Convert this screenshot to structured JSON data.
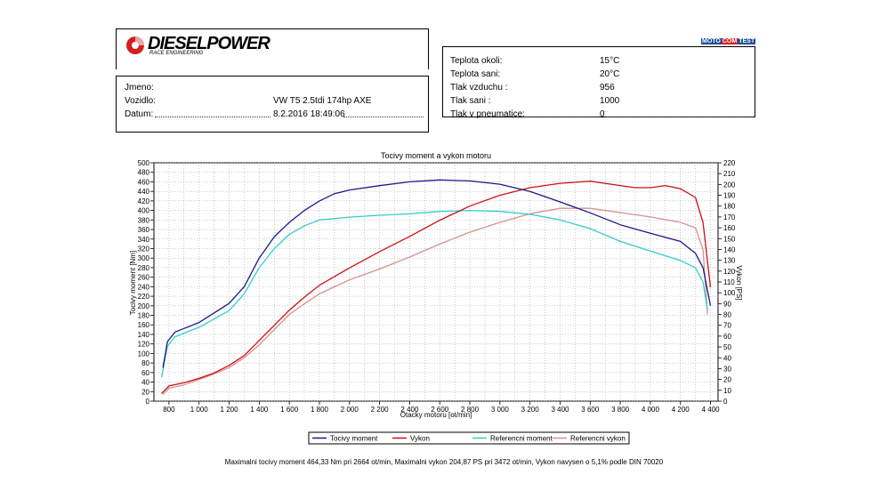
{
  "header": {
    "logo_text": "DIESELPOWER",
    "logo_sub": "RACE ENGINEERING",
    "brand_mark": {
      "part1": "MOTO",
      "part2": "COM",
      "part3": "TEST"
    }
  },
  "info": {
    "fields": [
      {
        "label": "Jmeno:",
        "value": ""
      },
      {
        "label": "Vozidlo:",
        "value": "VW T5 2.5tdi 174hp AXE"
      },
      {
        "label": "Datum:",
        "value": "8.2.2016 18:49:06"
      }
    ]
  },
  "conditions": {
    "fields": [
      {
        "label": "Teplota okoli:",
        "value": "15°C"
      },
      {
        "label": "Teplota sani:",
        "value": "20°C"
      },
      {
        "label": "Tlak vzduchu :",
        "value": "956"
      },
      {
        "label": "Tlak sani :",
        "value": "1000"
      },
      {
        "label": "Tlak v pneumatice:",
        "value": "0"
      }
    ]
  },
  "chart_data": {
    "type": "line",
    "title": "Tocivy moment a vykon motoru",
    "xlabel": "Otacky motoru [ot/min]",
    "ylabel_left": "Tocivy moment [Nm]",
    "ylabel_right": "Vykon [PS]",
    "xlim": [
      700,
      4450
    ],
    "ylim_left": [
      0,
      500
    ],
    "ylim_right": [
      0,
      220
    ],
    "x_ticks": [
      "800",
      "1 000",
      "1 200",
      "1 400",
      "1 600",
      "1 800",
      "2 000",
      "2 200",
      "2 400",
      "2 600",
      "2 800",
      "3 000",
      "3 200",
      "3 400",
      "3 600",
      "3 800",
      "4 000",
      "4 200",
      "4 400"
    ],
    "y_left_ticks": [
      "0",
      "20",
      "40",
      "60",
      "80",
      "100",
      "120",
      "140",
      "160",
      "180",
      "200",
      "220",
      "240",
      "260",
      "280",
      "300",
      "320",
      "340",
      "360",
      "380",
      "400",
      "420",
      "440",
      "460",
      "480",
      "500"
    ],
    "y_right_ticks": [
      "0",
      "10",
      "20",
      "30",
      "40",
      "50",
      "60",
      "70",
      "80",
      "90",
      "100",
      "110",
      "120",
      "130",
      "140",
      "150",
      "160",
      "170",
      "180",
      "190",
      "200",
      "210",
      "220"
    ],
    "grid": true,
    "legend_position": "bottom",
    "series": [
      {
        "name": "Tocivy moment",
        "axis": "left",
        "color": "#1a1a8c",
        "points": [
          [
            760,
            70
          ],
          [
            790,
            125
          ],
          [
            840,
            145
          ],
          [
            1000,
            165
          ],
          [
            1200,
            205
          ],
          [
            1300,
            240
          ],
          [
            1400,
            300
          ],
          [
            1500,
            345
          ],
          [
            1600,
            375
          ],
          [
            1700,
            400
          ],
          [
            1800,
            420
          ],
          [
            1900,
            435
          ],
          [
            2000,
            443
          ],
          [
            2200,
            452
          ],
          [
            2400,
            460
          ],
          [
            2600,
            464
          ],
          [
            2800,
            462
          ],
          [
            3000,
            455
          ],
          [
            3200,
            440
          ],
          [
            3400,
            418
          ],
          [
            3600,
            395
          ],
          [
            3800,
            370
          ],
          [
            4000,
            352
          ],
          [
            4200,
            335
          ],
          [
            4300,
            310
          ],
          [
            4350,
            280
          ],
          [
            4400,
            200
          ]
        ]
      },
      {
        "name": "Vykon",
        "axis": "right",
        "color": "#cc1111",
        "points": [
          [
            750,
            7
          ],
          [
            800,
            14
          ],
          [
            900,
            17
          ],
          [
            1000,
            21
          ],
          [
            1100,
            26
          ],
          [
            1200,
            33
          ],
          [
            1300,
            42
          ],
          [
            1400,
            56
          ],
          [
            1500,
            70
          ],
          [
            1600,
            84
          ],
          [
            1700,
            96
          ],
          [
            1800,
            107
          ],
          [
            1900,
            115
          ],
          [
            2000,
            123
          ],
          [
            2200,
            138
          ],
          [
            2400,
            152
          ],
          [
            2600,
            167
          ],
          [
            2800,
            180
          ],
          [
            3000,
            190
          ],
          [
            3200,
            197
          ],
          [
            3400,
            201
          ],
          [
            3500,
            202
          ],
          [
            3600,
            203
          ],
          [
            3800,
            199
          ],
          [
            3900,
            197
          ],
          [
            4000,
            197
          ],
          [
            4100,
            199
          ],
          [
            4200,
            196
          ],
          [
            4300,
            188
          ],
          [
            4350,
            165
          ],
          [
            4400,
            105
          ]
        ]
      },
      {
        "name": "Referencni moment",
        "axis": "left",
        "color": "#33cccc",
        "points": [
          [
            750,
            50
          ],
          [
            790,
            115
          ],
          [
            840,
            135
          ],
          [
            1000,
            155
          ],
          [
            1200,
            190
          ],
          [
            1300,
            225
          ],
          [
            1400,
            280
          ],
          [
            1500,
            320
          ],
          [
            1600,
            350
          ],
          [
            1700,
            368
          ],
          [
            1800,
            380
          ],
          [
            2000,
            386
          ],
          [
            2200,
            390
          ],
          [
            2400,
            393
          ],
          [
            2600,
            398
          ],
          [
            2800,
            400
          ],
          [
            3000,
            398
          ],
          [
            3200,
            392
          ],
          [
            3400,
            380
          ],
          [
            3600,
            362
          ],
          [
            3800,
            335
          ],
          [
            4000,
            315
          ],
          [
            4200,
            295
          ],
          [
            4300,
            280
          ],
          [
            4350,
            250
          ],
          [
            4380,
            190
          ]
        ]
      },
      {
        "name": "Referencni vykon",
        "axis": "right",
        "color": "#d99090",
        "points": [
          [
            760,
            6
          ],
          [
            800,
            12
          ],
          [
            900,
            15
          ],
          [
            1000,
            20
          ],
          [
            1100,
            25
          ],
          [
            1200,
            31
          ],
          [
            1300,
            40
          ],
          [
            1400,
            52
          ],
          [
            1500,
            66
          ],
          [
            1600,
            80
          ],
          [
            1700,
            90
          ],
          [
            1800,
            99
          ],
          [
            2000,
            112
          ],
          [
            2200,
            122
          ],
          [
            2400,
            133
          ],
          [
            2600,
            145
          ],
          [
            2800,
            156
          ],
          [
            3000,
            165
          ],
          [
            3200,
            173
          ],
          [
            3400,
            178
          ],
          [
            3600,
            178
          ],
          [
            3800,
            174
          ],
          [
            4000,
            170
          ],
          [
            4200,
            165
          ],
          [
            4300,
            160
          ],
          [
            4350,
            140
          ],
          [
            4380,
            80
          ]
        ]
      }
    ]
  },
  "footer": {
    "summary": "Maximalni tocivy moment 464,33 Nm pri 2664 ot/min,  Maximalni vykon 204,87 PS pri 3472 ot/min,  Vykon navysen o 5,1% podle DIN 70020"
  }
}
